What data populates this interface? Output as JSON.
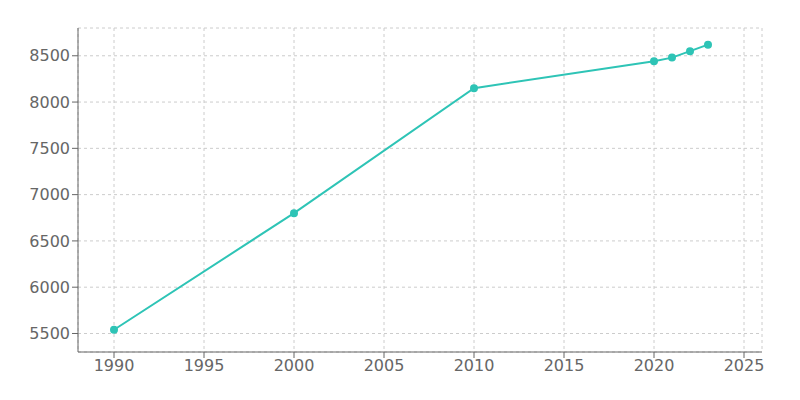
{
  "chart_data": {
    "type": "line",
    "x": [
      1990,
      2000,
      2010,
      2020,
      2021,
      2022,
      2023
    ],
    "values": [
      5540,
      6800,
      8150,
      8440,
      8480,
      8550,
      8620
    ],
    "color": "#2ec4b6",
    "marker": "circle",
    "xlim": [
      1988,
      2026
    ],
    "ylim": [
      5300,
      8800
    ],
    "xticks": [
      1990,
      1995,
      2000,
      2005,
      2010,
      2015,
      2020,
      2025
    ],
    "yticks": [
      5500,
      6000,
      6500,
      7000,
      7500,
      8000,
      8500
    ],
    "grid": true
  }
}
